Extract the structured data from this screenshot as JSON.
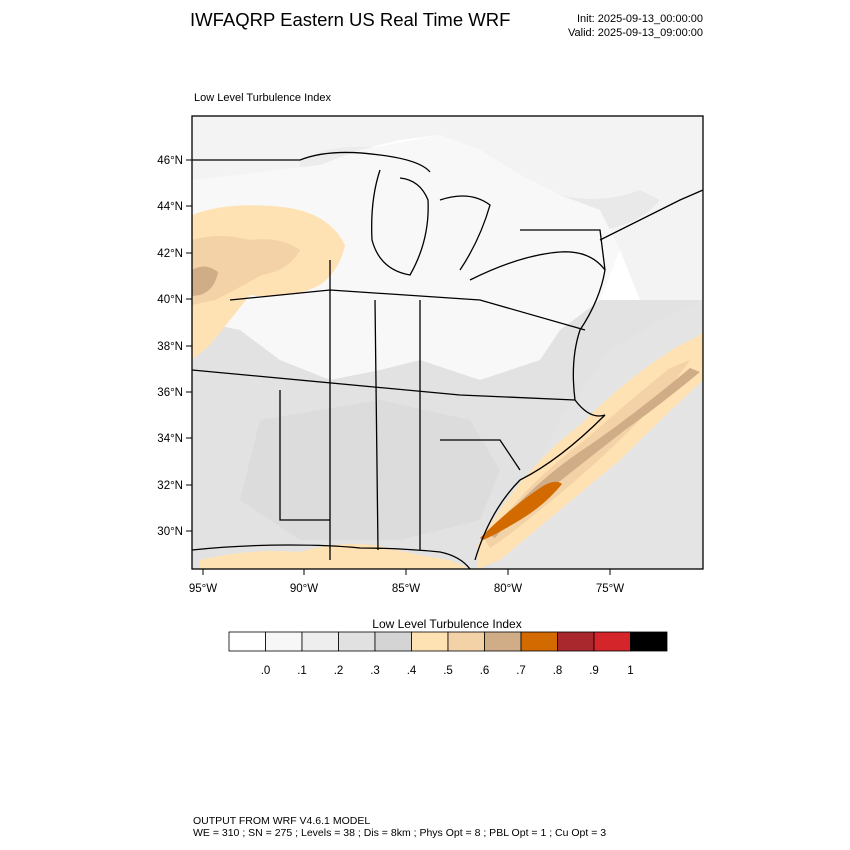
{
  "header": {
    "title": "IWFAQRP Eastern US Real Time WRF",
    "init": "Init: 2025-09-13_00:00:00",
    "valid": "Valid: 2025-09-13_09:00:00"
  },
  "plot": {
    "title": "Low Level Turbulence Index",
    "lat_labels": [
      "46°N",
      "44°N",
      "42°N",
      "40°N",
      "38°N",
      "36°N",
      "34°N",
      "32°N",
      "30°N"
    ],
    "lon_labels": [
      "95°W",
      "90°W",
      "85°W",
      "80°W",
      "75°W"
    ]
  },
  "colorbar": {
    "title": "Low Level Turbulence Index",
    "colors": [
      "#ffffff",
      "#f7f7f7",
      "#eeeeee",
      "#e1e1e1",
      "#d4d4d4",
      "#ffe2b3",
      "#f2d2a6",
      "#d0ad87",
      "#d36a00",
      "#a8282e",
      "#d3252a",
      "#000000"
    ],
    "labels": [
      ".0",
      ".1",
      ".2",
      ".3",
      ".4",
      ".5",
      ".6",
      ".7",
      ".8",
      ".9",
      "1"
    ]
  },
  "footer": {
    "line1": "OUTPUT FROM WRF V4.6.1 MODEL",
    "line2": "WE = 310 ; SN = 275 ; Levels = 38 ; Dis = 8km ; Phys Opt = 8 ; PBL Opt = 1 ; Cu Opt = 3"
  }
}
